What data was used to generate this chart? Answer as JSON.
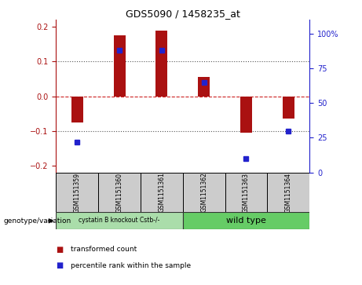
{
  "title": "GDS5090 / 1458235_at",
  "samples": [
    "GSM1151359",
    "GSM1151360",
    "GSM1151361",
    "GSM1151362",
    "GSM1151363",
    "GSM1151364"
  ],
  "bar_values": [
    -0.075,
    0.175,
    0.19,
    0.055,
    -0.105,
    -0.065
  ],
  "percentile_values": [
    22,
    88,
    88,
    65,
    10,
    30
  ],
  "bar_color": "#aa1111",
  "dot_color": "#2222cc",
  "ylim_left": [
    -0.22,
    0.22
  ],
  "ylim_right": [
    0,
    110
  ],
  "yticks_left": [
    -0.2,
    -0.1,
    0,
    0.1,
    0.2
  ],
  "yticks_right": [
    0,
    25,
    50,
    75,
    100
  ],
  "ytick_labels_right": [
    "0",
    "25",
    "50",
    "75",
    "100%"
  ],
  "group1_label": "cystatin B knockout Cstb-/-",
  "group2_label": "wild type",
  "group1_color": "#aaddaa",
  "group2_color": "#66cc66",
  "genotype_label": "genotype/variation",
  "legend_bar_label": "transformed count",
  "legend_dot_label": "percentile rank within the sample",
  "background_color": "#ffffff",
  "plot_bg_color": "#ffffff",
  "zero_line_color": "#cc2222",
  "dotted_line_color": "#555555",
  "cell_color": "#cccccc"
}
